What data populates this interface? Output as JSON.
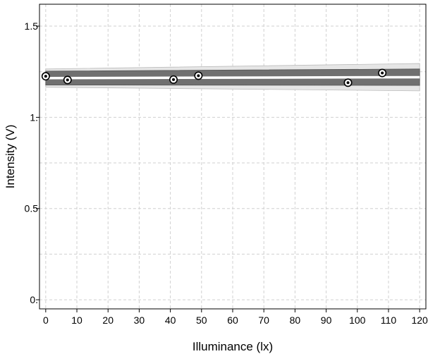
{
  "chart_data": {
    "type": "scatter",
    "xlabel": "Illuminance  (lx)",
    "ylabel": "Intensity  (V)",
    "xlim": [
      -2,
      122
    ],
    "ylim": [
      -0.05,
      1.62
    ],
    "grid": true,
    "x_ticks": [
      0,
      10,
      20,
      30,
      40,
      50,
      60,
      70,
      80,
      90,
      100,
      110,
      120
    ],
    "y_ticks": [
      0,
      0.5,
      1,
      1.5
    ],
    "y_tick_labels": [
      "0.",
      "0.5",
      "1.",
      "1.5"
    ],
    "y_minor_gridlines": [
      0.25,
      0.75,
      1.25
    ],
    "points": [
      {
        "x": 0,
        "y": 1.225
      },
      {
        "x": 7,
        "y": 1.205
      },
      {
        "x": 41,
        "y": 1.207
      },
      {
        "x": 49,
        "y": 1.228
      },
      {
        "x": 97,
        "y": 1.19
      },
      {
        "x": 108,
        "y": 1.243
      }
    ],
    "fit": {
      "x": [
        0,
        120
      ],
      "y": [
        1.215,
        1.22
      ],
      "inner_band_upper": [
        1.253,
        1.265
      ],
      "inner_band_lower": [
        1.177,
        1.175
      ],
      "outer_band_upper": [
        1.265,
        1.295
      ],
      "outer_band_lower": [
        1.165,
        1.145
      ]
    },
    "colors": {
      "outer_band": "#e6e6e6",
      "inner_band": "#707070",
      "fit_line": "#ffffff",
      "grid": "#d0d0d0",
      "points": "#000000",
      "axis": "#000000"
    }
  }
}
